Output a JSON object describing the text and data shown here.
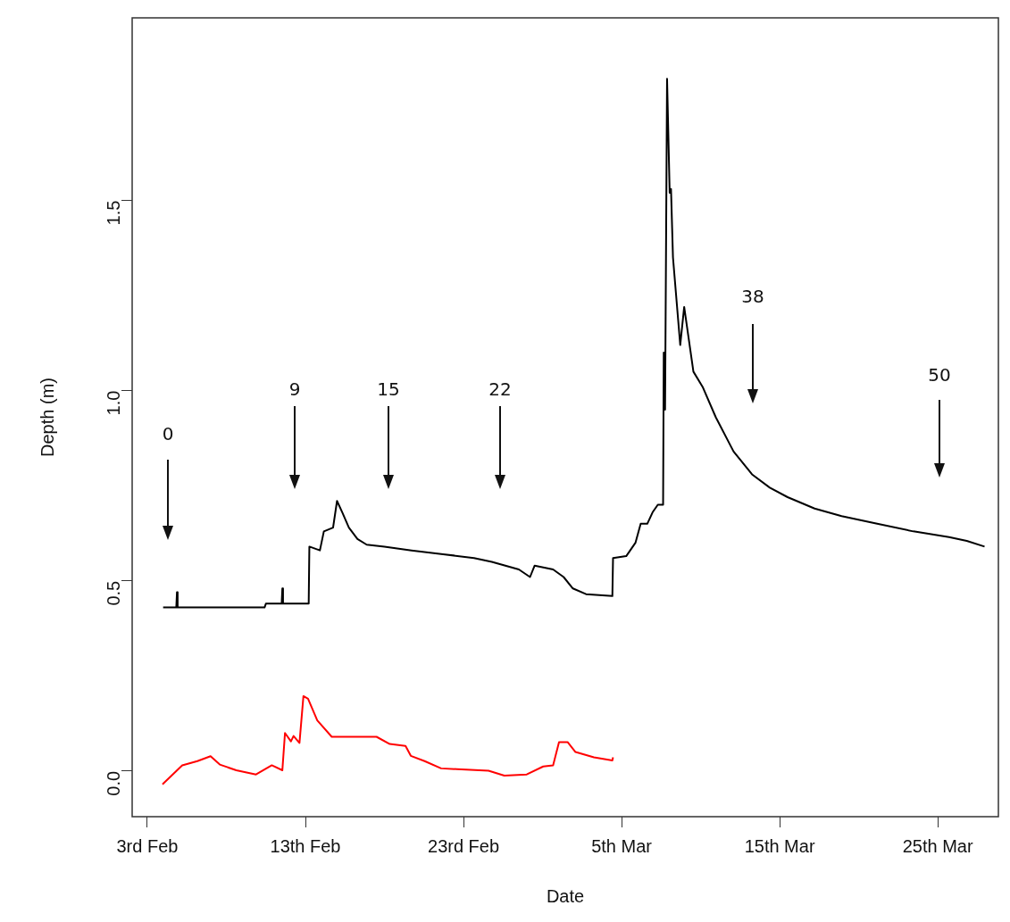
{
  "chart_data": {
    "type": "line",
    "xlabel": "Date",
    "ylabel": "Depth (m)",
    "xlim": [
      "--02-02T01:00",
      "--03-28T20:00"
    ],
    "ylim": [
      -0.12,
      1.98
    ],
    "xticks": [
      {
        "value": "--02-03",
        "label": "3rd Feb"
      },
      {
        "value": "--02-13",
        "label": "13th Feb"
      },
      {
        "value": "--02-23",
        "label": "23rd Feb"
      },
      {
        "value": "--03-05",
        "label": "5th Mar"
      },
      {
        "value": "--03-15",
        "label": "15th Mar"
      },
      {
        "value": "--03-25",
        "label": "25th Mar"
      }
    ],
    "yticks": [
      {
        "value": 0,
        "label": "0.0"
      },
      0.5,
      {
        "value": 1,
        "label": "1.0"
      },
      1.5
    ],
    "grid": false,
    "legend": false,
    "series": [
      {
        "color": "#000000",
        "x": [
          "--02-04T00:00",
          "--02-04T20:00",
          "--02-04T21:00",
          "--02-04T22:00",
          "--02-10T10:00",
          "--02-10T12:00",
          "--02-11T12:00",
          "--02-11T13:00",
          "--02-11T14:00",
          "--02-13T05:00",
          "--02-13T06:00",
          "--02-13T22:00",
          "--02-14T04:00",
          "--02-14T18:00",
          "--02-15T00:00",
          "--02-15T08:00",
          "--02-15T18:00",
          "--02-16T07:00",
          "--02-16T21:00",
          "--02-18T00:00",
          "--02-19T17:00",
          "--02-21T17:00",
          "--02-23T16:00",
          "--02-24T19:00",
          "--02-26T12:00",
          "--02-27T05:00",
          "--02-27T12:00",
          "--02-28T16:00",
          "--03-01T08:00",
          "--03-01T22:00",
          "--03-02T18:00",
          "--03-04T10:00",
          "--03-04T11:00",
          "--03-05T07:00",
          "--03-05T21:00",
          "--03-06T05:00",
          "--03-06T15:00",
          "--03-06T23:00",
          "--03-07T07:00",
          "--03-07T15:00",
          "--03-07T16:00",
          "--03-07T18:00",
          "--03-07T21:00",
          "--03-08T01:00",
          "--03-08T03:00",
          "--03-08T06:00",
          "--03-08T17:00",
          "--03-08T23:00",
          "--03-09T13:00",
          "--03-10T03:00",
          "--03-10T23:00",
          "--03-12T02:00",
          "--03-13T06:00",
          "--03-14T09:00",
          "--03-15T12:00",
          "--03-17T05:00",
          "--03-18T22:00",
          "--03-21T04:00",
          "--03-23T11:00",
          "--03-25T17:00",
          "--03-26T20:00",
          "--03-27T23:00"
        ],
        "values": [
          0.43,
          0.43,
          0.47,
          0.43,
          0.43,
          0.44,
          0.44,
          0.48,
          0.44,
          0.44,
          0.59,
          0.58,
          0.63,
          0.64,
          0.71,
          0.68,
          0.64,
          0.61,
          0.595,
          0.59,
          0.58,
          0.57,
          0.56,
          0.55,
          0.53,
          0.51,
          0.54,
          0.53,
          0.51,
          0.48,
          0.465,
          0.46,
          0.56,
          0.565,
          0.6,
          0.65,
          0.65,
          0.68,
          0.7,
          0.7,
          1.1,
          0.95,
          1.82,
          1.52,
          1.53,
          1.35,
          1.12,
          1.22,
          1.05,
          1.01,
          0.93,
          0.84,
          0.78,
          0.745,
          0.72,
          0.69,
          0.67,
          0.65,
          0.63,
          0.615,
          0.605,
          0.59
        ]
      },
      {
        "color": "#ff0000",
        "x": [
          "--02-03T23:00",
          "--02-05T05:00",
          "--02-06T04:00",
          "--02-07T00:00",
          "--02-07T14:00",
          "--02-08T15:00",
          "--02-09T21:00",
          "--02-10T21:00",
          "--02-11T13:00",
          "--02-11T17:00",
          "--02-12T02:00",
          "--02-12T06:00",
          "--02-12T15:00",
          "--02-12T21:00",
          "--02-13T04:00",
          "--02-13T18:00",
          "--02-14T16:00",
          "--02-17T12:00",
          "--02-18T08:00",
          "--02-19T08:00",
          "--02-19T16:00",
          "--02-20T13:00",
          "--02-21T14:00",
          "--02-22T14:00",
          "--02-24T14:00",
          "--02-25T14:00",
          "--02-27T00:00",
          "--02-28T01:00",
          "--02-28T16:00",
          "--03-01T01:00",
          "--03-01T14:00",
          "--03-02T02:00",
          "--03-03T06:00",
          "--03-04T10:00",
          "--03-04T11:00"
        ],
        "values": [
          -0.035,
          0.015,
          0.026,
          0.039,
          0.017,
          0.002,
          -0.009,
          0.015,
          0.002,
          0.1,
          0.078,
          0.092,
          0.074,
          0.197,
          0.19,
          0.133,
          0.09,
          0.09,
          0.071,
          0.066,
          0.04,
          0.026,
          0.007,
          0.005,
          0.001,
          -0.012,
          -0.009,
          0.012,
          0.015,
          0.076,
          0.076,
          0.05,
          0.036,
          0.028,
          0.036
        ]
      }
    ],
    "annotations": [
      "0",
      "9",
      "15",
      "22",
      "38",
      "50"
    ]
  }
}
